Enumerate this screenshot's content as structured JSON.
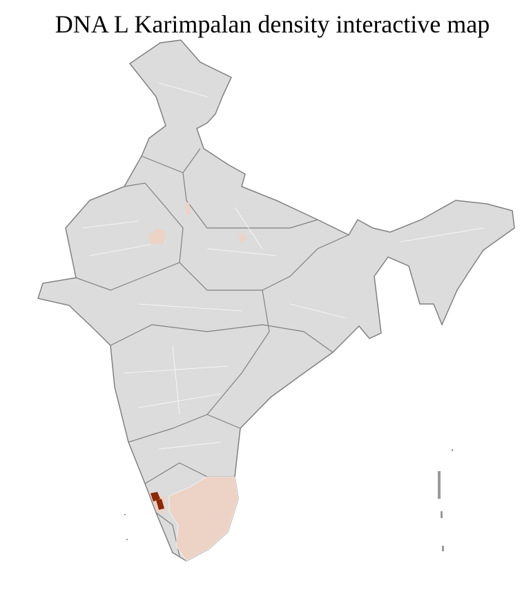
{
  "title": "DNA L Karimpalan density interactive map",
  "colors": {
    "land": "#dcdcdc",
    "state_border": "#808080",
    "district_border": "#ffffff",
    "density_low": "#ecd3c6",
    "density_high": "#8b2a05"
  },
  "regions": [
    {
      "name": "high density districts (Kerala coast)",
      "level": "high"
    },
    {
      "name": "low density region (South India)",
      "level": "low"
    },
    {
      "name": "low density district (Rajasthan)",
      "level": "low"
    },
    {
      "name": "low density district (Haryana)",
      "level": "low"
    },
    {
      "name": "low density district (Uttar Pradesh)",
      "level": "low"
    }
  ]
}
